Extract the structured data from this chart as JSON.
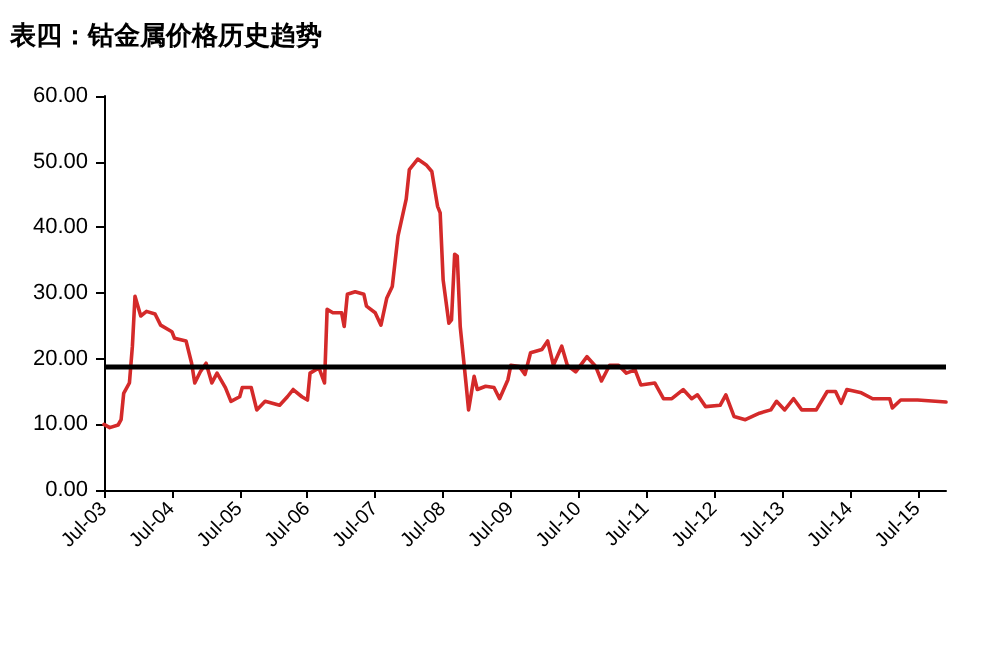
{
  "chart_data": {
    "type": "line",
    "title": "表四：钴金属价格历史趋势",
    "x": [
      "2003-07-01",
      "2003-08-01",
      "2003-09-15",
      "2003-10-01",
      "2003-10-15",
      "2003-11-15",
      "2003-12-01",
      "2003-12-15",
      "2004-01-15",
      "2004-02-15",
      "2004-04-01",
      "2004-05-01",
      "2004-07-01",
      "2004-07-15",
      "2004-09-15",
      "2004-10-15",
      "2004-11-01",
      "2004-12-01",
      "2005-01-01",
      "2005-02-01",
      "2005-03-01",
      "2005-04-15",
      "2005-05-15",
      "2005-07-01",
      "2005-07-15",
      "2005-09-01",
      "2005-10-01",
      "2005-11-15",
      "2006-02-01",
      "2006-03-15",
      "2006-04-15",
      "2006-06-01",
      "2006-07-01",
      "2006-07-15",
      "2006-09-01",
      "2006-10-01",
      "2006-10-15",
      "2006-11-15",
      "2007-01-01",
      "2007-01-15",
      "2007-02-01",
      "2007-03-15",
      "2007-05-01",
      "2007-05-15",
      "2007-07-01",
      "2007-08-01",
      "2007-09-01",
      "2007-10-01",
      "2007-11-01",
      "2007-12-15",
      "2008-01-01",
      "2008-02-15",
      "2008-04-01",
      "2008-05-01",
      "2008-06-01",
      "2008-06-15",
      "2008-07-01",
      "2008-08-01",
      "2008-08-15",
      "2008-09-01",
      "2008-09-15",
      "2008-10-01",
      "2008-11-01",
      "2008-11-15",
      "2008-12-15",
      "2009-01-01",
      "2009-02-15",
      "2009-04-01",
      "2009-05-01",
      "2009-06-15",
      "2009-07-01",
      "2009-08-15",
      "2009-09-15",
      "2009-10-15",
      "2009-12-15",
      "2010-01-15",
      "2010-02-15",
      "2010-04-01",
      "2010-05-01",
      "2010-06-15",
      "2010-08-15",
      "2010-10-01",
      "2010-11-01",
      "2010-12-15",
      "2011-02-01",
      "2011-03-15",
      "2011-05-01",
      "2011-06-01",
      "2011-08-15",
      "2011-10-01",
      "2011-11-15",
      "2012-01-15",
      "2012-03-01",
      "2012-04-01",
      "2012-05-15",
      "2012-08-01",
      "2012-09-01",
      "2012-10-15",
      "2012-12-15",
      "2013-03-01",
      "2013-05-01",
      "2013-06-01",
      "2013-07-15",
      "2013-09-01",
      "2013-10-15",
      "2014-01-01",
      "2014-03-01",
      "2014-04-15",
      "2014-05-15",
      "2014-06-15",
      "2014-09-01",
      "2014-11-01",
      "2015-02-01",
      "2015-02-15",
      "2015-04-01",
      "2015-07-01",
      "2015-12-01"
    ],
    "series": [
      {
        "color": "#d42a2a",
        "values": [
          10.0,
          9.5,
          9.9,
          10.7,
          14.7,
          16.3,
          21.9,
          29.5,
          26.5,
          27.2,
          26.8,
          25.1,
          24.1,
          23.1,
          22.7,
          19.3,
          16.3,
          18.0,
          19.3,
          16.3,
          17.8,
          15.6,
          13.5,
          14.2,
          15.6,
          15.6,
          12.2,
          13.5,
          12.9,
          14.2,
          15.3,
          14.2,
          13.7,
          17.8,
          18.6,
          16.3,
          27.5,
          27.0,
          27.0,
          24.9,
          29.8,
          30.2,
          29.8,
          28.0,
          27.0,
          25.1,
          29.2,
          31.0,
          38.7,
          44.3,
          48.8,
          50.4,
          49.5,
          48.5,
          43.2,
          42.2,
          32.0,
          25.4,
          25.9,
          35.9,
          35.6,
          24.9,
          16.3,
          12.2,
          17.3,
          15.3,
          15.8,
          15.6,
          13.9,
          16.8,
          19.0,
          18.8,
          17.6,
          20.9,
          21.4,
          22.7,
          19.0,
          21.9,
          19.0,
          18.0,
          20.3,
          18.8,
          16.6,
          19.0,
          19.0,
          17.8,
          18.3,
          16.0,
          16.3,
          13.9,
          13.9,
          15.3,
          13.9,
          14.5,
          12.7,
          12.9,
          14.5,
          11.2,
          10.7,
          11.7,
          12.2,
          13.5,
          12.2,
          13.9,
          12.2,
          12.2,
          15.0,
          15.0,
          13.2,
          15.3,
          14.8,
          13.9,
          13.9,
          12.5,
          13.7,
          13.7,
          13.4
        ]
      }
    ],
    "xlim": [
      "2003-07-01",
      "2015-12-01"
    ],
    "xticks": [
      {
        "value": "2003-07-01",
        "label": "Jul-03"
      },
      {
        "value": "2004-07-01",
        "label": "Jul-04"
      },
      {
        "value": "2005-07-01",
        "label": "Jul-05"
      },
      {
        "value": "2006-07-01",
        "label": "Jul-06"
      },
      {
        "value": "2007-07-01",
        "label": "Jul-07"
      },
      {
        "value": "2008-07-01",
        "label": "Jul-08"
      },
      {
        "value": "2009-07-01",
        "label": "Jul-09"
      },
      {
        "value": "2010-07-01",
        "label": "Jul-10"
      },
      {
        "value": "2011-07-01",
        "label": "Jul-11"
      },
      {
        "value": "2012-07-01",
        "label": "Jul-12"
      },
      {
        "value": "2013-07-01",
        "label": "Jul-13"
      },
      {
        "value": "2014-07-01",
        "label": "Jul-14"
      },
      {
        "value": "2015-07-01",
        "label": "Jul-15"
      }
    ],
    "ylim": [
      0,
      60
    ],
    "yticks": [
      {
        "value": 0,
        "label": "0.00"
      },
      {
        "value": 10,
        "label": "10.00"
      },
      {
        "value": 20,
        "label": "20.00"
      },
      {
        "value": 30,
        "label": "30.00"
      },
      {
        "value": 40,
        "label": "40.00"
      },
      {
        "value": 50,
        "label": "50.00"
      },
      {
        "value": 60,
        "label": "60.00"
      }
    ],
    "ref_lines": [
      {
        "axis": "y",
        "value": 18.8,
        "color": "#000000"
      }
    ],
    "grid": false,
    "marker": "none",
    "line_style": "solid"
  }
}
